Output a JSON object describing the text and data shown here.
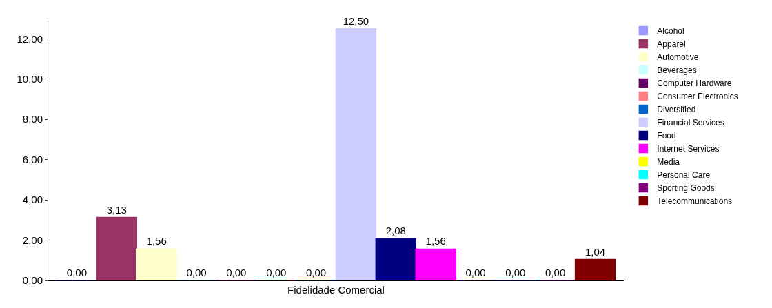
{
  "chart_data": {
    "type": "bar",
    "xlabel": null,
    "categories": [
      "Fidelidade Comercial"
    ],
    "series": [
      {
        "name": "Alcohol",
        "color": "#9999ff",
        "values": [
          0
        ],
        "value_labels": [
          "0,00"
        ]
      },
      {
        "name": "Apparel",
        "color": "#993366",
        "values": [
          3.13
        ],
        "value_labels": [
          "3,13"
        ]
      },
      {
        "name": "Automotive",
        "color": "#ffffcc",
        "values": [
          1.56
        ],
        "value_labels": [
          "1,56"
        ]
      },
      {
        "name": "Beverages",
        "color": "#ccffff",
        "values": [
          0
        ],
        "value_labels": [
          "0,00"
        ]
      },
      {
        "name": "Computer Hardware",
        "color": "#660066",
        "values": [
          0
        ],
        "value_labels": [
          "0,00"
        ]
      },
      {
        "name": "Consumer Electronics",
        "color": "#ff8080",
        "values": [
          0
        ],
        "value_labels": [
          "0,00"
        ]
      },
      {
        "name": "Diversified",
        "color": "#0066cc",
        "values": [
          0
        ],
        "value_labels": [
          "0,00"
        ]
      },
      {
        "name": "Financial Services",
        "color": "#ccccff",
        "values": [
          12.5
        ],
        "value_labels": [
          "12,50"
        ]
      },
      {
        "name": "Food",
        "color": "#000080",
        "values": [
          2.08
        ],
        "value_labels": [
          "2,08"
        ]
      },
      {
        "name": "Internet Services",
        "color": "#ff00ff",
        "values": [
          1.56
        ],
        "value_labels": [
          "1,56"
        ]
      },
      {
        "name": "Media",
        "color": "#ffff00",
        "values": [
          0
        ],
        "value_labels": [
          "0,00"
        ]
      },
      {
        "name": "Personal Care",
        "color": "#00ffff",
        "values": [
          0
        ],
        "value_labels": [
          "0,00"
        ]
      },
      {
        "name": "Sporting Goods",
        "color": "#800080",
        "values": [
          0
        ],
        "value_labels": [
          "0,00"
        ]
      },
      {
        "name": "Telecommunications",
        "color": "#800000",
        "values": [
          1.04
        ],
        "value_labels": [
          "1,04"
        ]
      }
    ],
    "ylim": [
      0,
      12.9
    ],
    "yticks": [
      {
        "value": 0,
        "label": "0,00"
      },
      {
        "value": 2,
        "label": "2,00"
      },
      {
        "value": 4,
        "label": "4,00"
      },
      {
        "value": 6,
        "label": "6,00"
      },
      {
        "value": 8,
        "label": "8,00"
      },
      {
        "value": 10,
        "label": "10,00"
      },
      {
        "value": 12,
        "label": "12,00"
      }
    ],
    "grid": false,
    "legend": "right"
  }
}
